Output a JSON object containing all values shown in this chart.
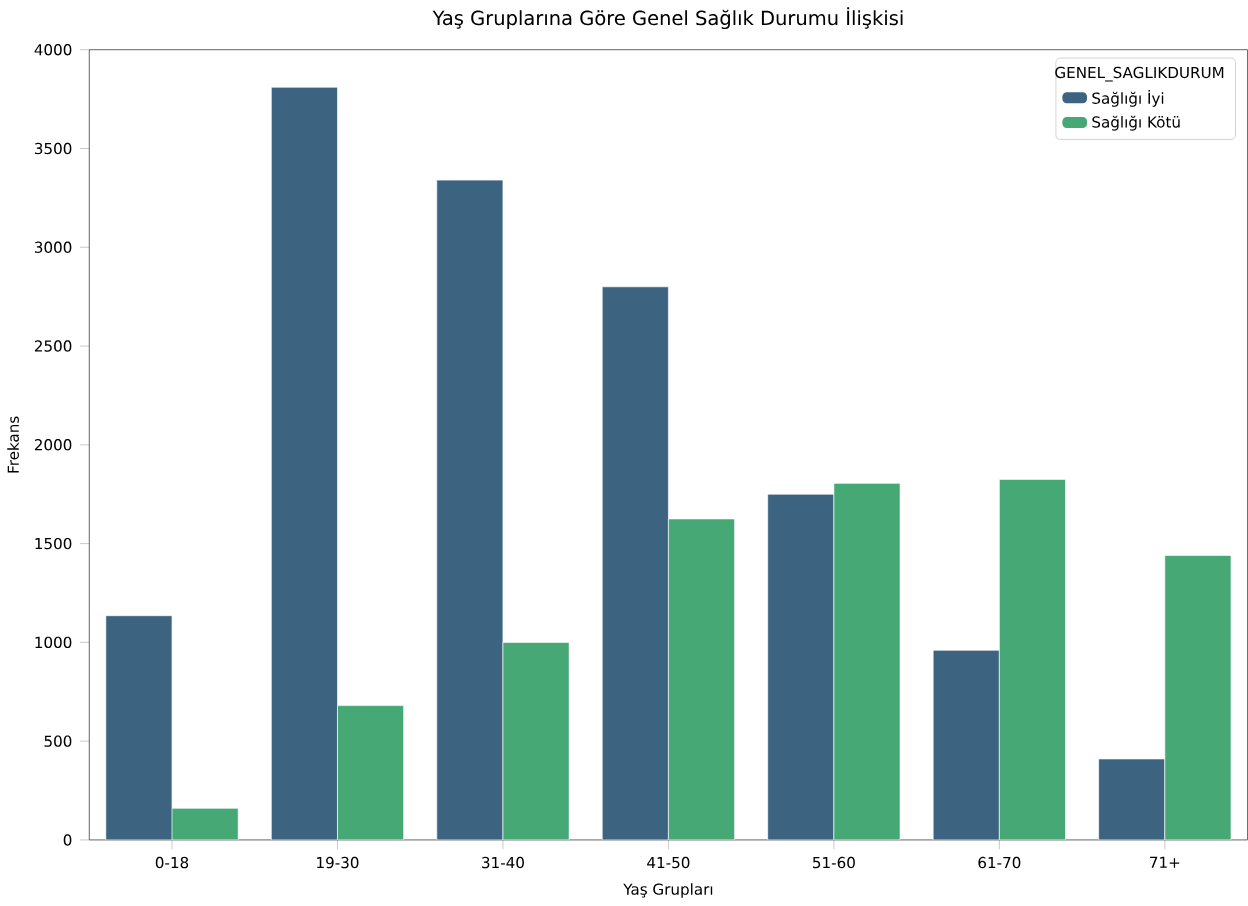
{
  "chart_data": {
    "type": "bar",
    "title": "Yaş Gruplarına Göre Genel Sağlık Durumu İlişkisi",
    "xlabel": "Yaş Grupları",
    "ylabel": "Frekans",
    "legend_title": "GENEL_SAGLIKDURUM",
    "categories": [
      "0-18",
      "19-30",
      "31-40",
      "41-50",
      "51-60",
      "61-70",
      "71+"
    ],
    "series": [
      {
        "name": "Sağlığı İyi",
        "color": "#3c6480",
        "values": [
          1135,
          3810,
          3340,
          2800,
          1750,
          960,
          410
        ]
      },
      {
        "name": "Sağlığı Kötü",
        "color": "#45a875",
        "values": [
          160,
          680,
          1000,
          1625,
          1805,
          1825,
          1440
        ]
      }
    ],
    "ylim": [
      0,
      4000
    ],
    "yticks": [
      0,
      500,
      1000,
      1500,
      2000,
      2500,
      3000,
      3500,
      4000
    ],
    "legend": "top right"
  }
}
